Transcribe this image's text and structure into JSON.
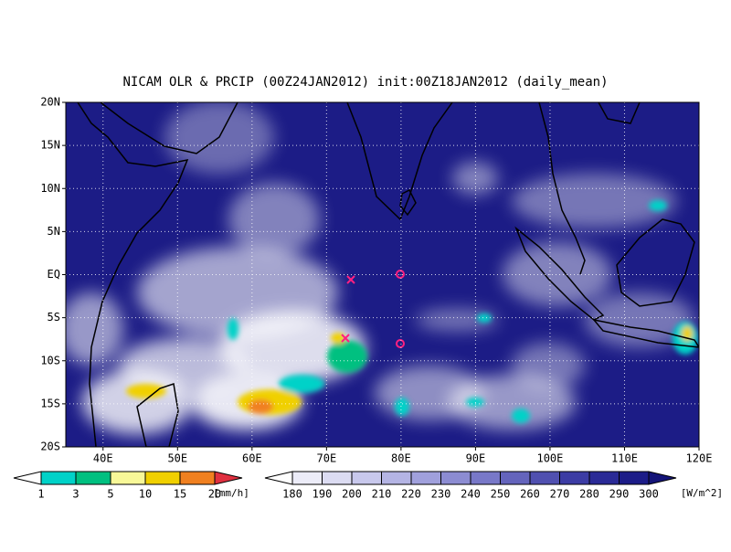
{
  "title": "NICAM OLR & PRCIP (00Z24JAN2012) init:00Z18JAN2012 (daily_mean)",
  "map": {
    "lat_labels": [
      "20N",
      "15N",
      "10N",
      "5N",
      "EQ",
      "5S",
      "10S",
      "15S",
      "20S"
    ],
    "lon_labels": [
      "40E",
      "50E",
      "60E",
      "70E",
      "80E",
      "90E",
      "100E",
      "110E",
      "120E"
    ]
  },
  "precip_colorbar": {
    "levels": [
      1,
      3,
      5,
      10,
      15,
      20
    ],
    "unit": "[mm/h]",
    "colors": [
      "#ffffff",
      "#00d2c8",
      "#00c080",
      "#f8f898",
      "#f0d000",
      "#f08020",
      "#e03040"
    ]
  },
  "olr_colorbar": {
    "levels": [
      180,
      190,
      200,
      210,
      220,
      230,
      240,
      250,
      260,
      270,
      280,
      290,
      300
    ],
    "unit": "[W/m^2]",
    "colors": [
      "#ffffff",
      "#ececf8",
      "#dcdcf2",
      "#c8c8ec",
      "#b4b4e4",
      "#a0a0dc",
      "#8c8cd2",
      "#7878c8",
      "#6464bc",
      "#5050b0",
      "#3c3ca4",
      "#2a2a96",
      "#1c1c88",
      "#141478"
    ]
  }
}
